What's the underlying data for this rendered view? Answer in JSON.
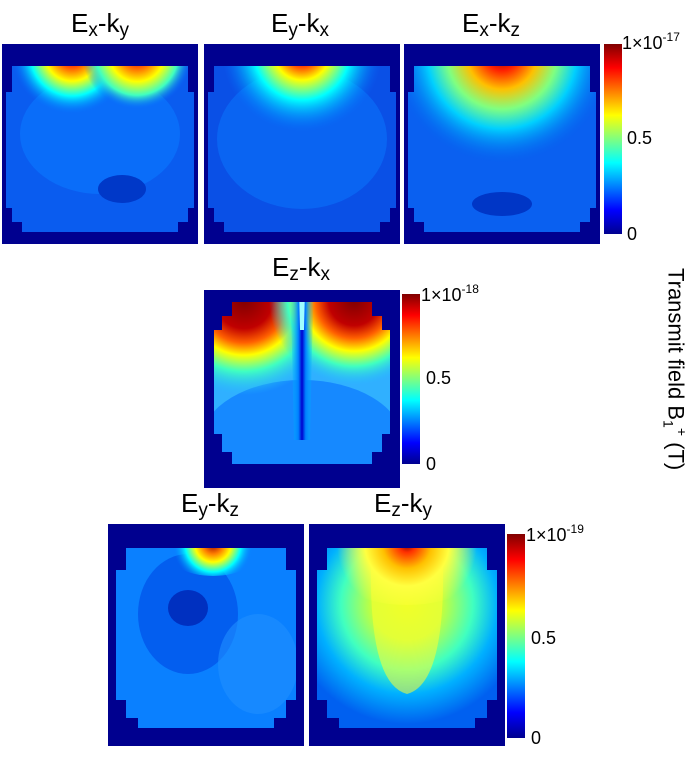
{
  "panels": [
    {
      "title_main": "E",
      "title_sub1": "x",
      "title_dash": "-k",
      "title_sub2": "y"
    },
    {
      "title_main": "E",
      "title_sub1": "y",
      "title_dash": "-k",
      "title_sub2": "x"
    },
    {
      "title_main": "E",
      "title_sub1": "x",
      "title_dash": "-k",
      "title_sub2": "z"
    },
    {
      "title_main": "E",
      "title_sub1": "z",
      "title_dash": "-k",
      "title_sub2": "x"
    },
    {
      "title_main": "E",
      "title_sub1": "y",
      "title_dash": "-k",
      "title_sub2": "z"
    },
    {
      "title_main": "E",
      "title_sub1": "z",
      "title_dash": "-k",
      "title_sub2": "y"
    }
  ],
  "colorbars": [
    {
      "max_mant": "1×10",
      "max_exp": "-17",
      "mid": "0.5",
      "min": "0"
    },
    {
      "max_mant": "1×10",
      "max_exp": "-18",
      "mid": "0.5",
      "min": "0"
    },
    {
      "max_mant": "1×10",
      "max_exp": "-19",
      "mid": "0.5",
      "min": "0"
    }
  ],
  "field_label": {
    "text": "Transmit field B",
    "sub": "1",
    "sup": "+",
    "unit": " (T)"
  },
  "chart_data": [
    {
      "type": "heatmap",
      "title": "Ex-ky",
      "colormap": "jet",
      "clim": [
        0,
        1e-17
      ],
      "ticks": [
        "0",
        "0.5",
        "1×10-17"
      ]
    },
    {
      "type": "heatmap",
      "title": "Ey-kx",
      "colormap": "jet",
      "clim": [
        0,
        1e-17
      ],
      "ticks": [
        "0",
        "0.5",
        "1×10-17"
      ]
    },
    {
      "type": "heatmap",
      "title": "Ex-kz",
      "colormap": "jet",
      "clim": [
        0,
        1e-17
      ],
      "ticks": [
        "0",
        "0.5",
        "1×10-17"
      ]
    },
    {
      "type": "heatmap",
      "title": "Ez-kx",
      "colormap": "jet",
      "clim": [
        0,
        1e-18
      ],
      "ticks": [
        "0",
        "0.5",
        "1×10-18"
      ]
    },
    {
      "type": "heatmap",
      "title": "Ey-kz",
      "colormap": "jet",
      "clim": [
        0,
        1e-19
      ],
      "ticks": [
        "0",
        "0.5",
        "1×10-19"
      ]
    },
    {
      "type": "heatmap",
      "title": "Ez-ky",
      "colormap": "jet",
      "clim": [
        0,
        1e-19
      ],
      "ticks": [
        "0",
        "0.5",
        "1×10-19"
      ]
    }
  ]
}
